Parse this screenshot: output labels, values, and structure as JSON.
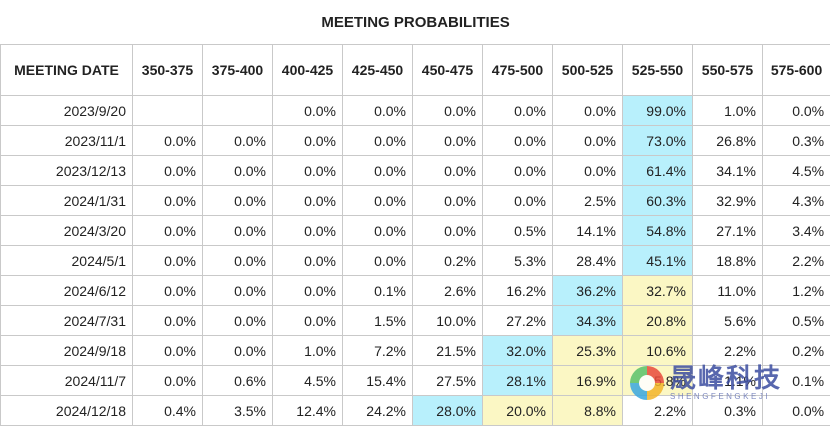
{
  "chart_data": {
    "type": "table",
    "title": "MEETING PROBABILITIES",
    "columns": [
      "MEETING DATE",
      "350-375",
      "375-400",
      "400-425",
      "425-450",
      "450-475",
      "475-500",
      "500-525",
      "525-550",
      "550-575",
      "575-600"
    ],
    "rows": [
      {
        "date": "2023/9/20",
        "cells": [
          "",
          "",
          "0.0%",
          "0.0%",
          "0.0%",
          "0.0%",
          "0.0%",
          "99.0%",
          "1.0%",
          "0.0%"
        ],
        "highlight": {
          "7": "blue"
        }
      },
      {
        "date": "2023/11/1",
        "cells": [
          "0.0%",
          "0.0%",
          "0.0%",
          "0.0%",
          "0.0%",
          "0.0%",
          "0.0%",
          "73.0%",
          "26.8%",
          "0.3%"
        ],
        "highlight": {
          "7": "blue"
        }
      },
      {
        "date": "2023/12/13",
        "cells": [
          "0.0%",
          "0.0%",
          "0.0%",
          "0.0%",
          "0.0%",
          "0.0%",
          "0.0%",
          "61.4%",
          "34.1%",
          "4.5%"
        ],
        "highlight": {
          "7": "blue"
        }
      },
      {
        "date": "2024/1/31",
        "cells": [
          "0.0%",
          "0.0%",
          "0.0%",
          "0.0%",
          "0.0%",
          "0.0%",
          "2.5%",
          "60.3%",
          "32.9%",
          "4.3%"
        ],
        "highlight": {
          "7": "blue"
        }
      },
      {
        "date": "2024/3/20",
        "cells": [
          "0.0%",
          "0.0%",
          "0.0%",
          "0.0%",
          "0.0%",
          "0.5%",
          "14.1%",
          "54.8%",
          "27.1%",
          "3.4%"
        ],
        "highlight": {
          "7": "blue"
        }
      },
      {
        "date": "2024/5/1",
        "cells": [
          "0.0%",
          "0.0%",
          "0.0%",
          "0.0%",
          "0.2%",
          "5.3%",
          "28.4%",
          "45.1%",
          "18.8%",
          "2.2%"
        ],
        "highlight": {
          "7": "blue"
        }
      },
      {
        "date": "2024/6/12",
        "cells": [
          "0.0%",
          "0.0%",
          "0.0%",
          "0.1%",
          "2.6%",
          "16.2%",
          "36.2%",
          "32.7%",
          "11.0%",
          "1.2%"
        ],
        "highlight": {
          "6": "blue",
          "7": "yellow"
        }
      },
      {
        "date": "2024/7/31",
        "cells": [
          "0.0%",
          "0.0%",
          "0.0%",
          "1.5%",
          "10.0%",
          "27.2%",
          "34.3%",
          "20.8%",
          "5.6%",
          "0.5%"
        ],
        "highlight": {
          "6": "blue",
          "7": "yellow"
        }
      },
      {
        "date": "2024/9/18",
        "cells": [
          "0.0%",
          "0.0%",
          "1.0%",
          "7.2%",
          "21.5%",
          "32.0%",
          "25.3%",
          "10.6%",
          "2.2%",
          "0.2%"
        ],
        "highlight": {
          "5": "blue",
          "6": "yellow",
          "7": "yellow"
        }
      },
      {
        "date": "2024/11/7",
        "cells": [
          "0.0%",
          "0.6%",
          "4.5%",
          "15.4%",
          "27.5%",
          "28.1%",
          "16.9%",
          "5.8%",
          "1.1%",
          "0.1%"
        ],
        "highlight": {
          "5": "blue",
          "6": "yellow",
          "7": "yellow"
        }
      },
      {
        "date": "2024/12/18",
        "cells": [
          "0.4%",
          "3.5%",
          "12.4%",
          "24.2%",
          "28.0%",
          "20.0%",
          "8.8%",
          "2.2%",
          "0.3%",
          "0.0%"
        ],
        "highlight": {
          "4": "blue",
          "5": "yellow",
          "6": "yellow"
        }
      }
    ]
  },
  "colors": {
    "highlight_blue": "#b8f0fc",
    "highlight_yellow": "#fbf7c4",
    "grid": "#c9c9c9"
  },
  "watermark": {
    "chinese": "晟峰科技",
    "english": "SHENGFENGKEJI"
  }
}
